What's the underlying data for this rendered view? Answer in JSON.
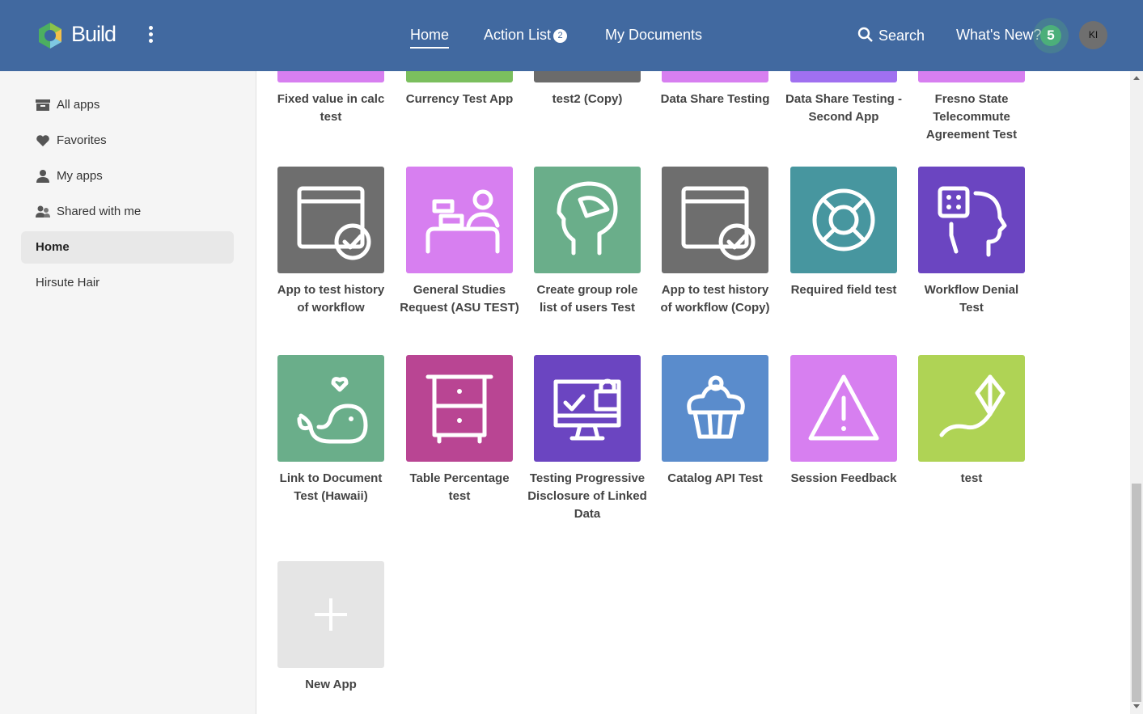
{
  "header": {
    "brand": "Build",
    "nav": [
      {
        "label": "Home",
        "active": true
      },
      {
        "label": "Action List",
        "badge": "2"
      },
      {
        "label": "My Documents"
      }
    ],
    "search": "Search",
    "whats_new": "What's New?",
    "whats_new_count": "5",
    "avatar": "KI",
    "bg": "#4169a0"
  },
  "sidebar": {
    "items": [
      {
        "label": "All apps",
        "icon": "archive-icon"
      },
      {
        "label": "Favorites",
        "icon": "heart-icon"
      },
      {
        "label": "My apps",
        "icon": "person-icon"
      },
      {
        "label": "Shared with me",
        "icon": "people-icon"
      },
      {
        "label": "Home",
        "active": true
      },
      {
        "label": "Hirsute Hair"
      }
    ]
  },
  "apps": [
    {
      "name": "Fixed value in calc test",
      "color": "#d77ff0",
      "icon": "none"
    },
    {
      "name": "Currency Test App",
      "color": "#7bbf5e",
      "icon": "none"
    },
    {
      "name": "test2 (Copy)",
      "color": "#6b6b6b",
      "icon": "none"
    },
    {
      "name": "Data Share Testing",
      "color": "#d77ff0",
      "icon": "none"
    },
    {
      "name": "Data Share Testing - Second App",
      "color": "#a070f0",
      "icon": "none"
    },
    {
      "name": "Fresno State Telecommute Agreement Test",
      "color": "#d77ff0",
      "icon": "none"
    },
    {
      "name": "App to test history of workflow",
      "color": "#6e6e6e",
      "icon": "calendar-check-icon"
    },
    {
      "name": "General Studies Request (ASU TEST)",
      "color": "#d77ff0",
      "icon": "cashier-icon"
    },
    {
      "name": "Create group role list of users Test",
      "color": "#6aae8a",
      "icon": "head-icon"
    },
    {
      "name": "App to test history of workflow (Copy)",
      "color": "#6e6e6e",
      "icon": "calendar-check-icon"
    },
    {
      "name": "Required field test",
      "color": "#47969f",
      "icon": "lifebuoy-icon"
    },
    {
      "name": "Workflow Denial Test",
      "color": "#6b45c1",
      "icon": "head-dice-icon"
    },
    {
      "name": "Link to Document Test (Hawaii)",
      "color": "#6aae8a",
      "icon": "whale-icon"
    },
    {
      "name": "Table Percentage test",
      "color": "#b94593",
      "icon": "cabinet-icon"
    },
    {
      "name": "Testing Progressive Disclosure of Linked Data",
      "color": "#6b45c1",
      "icon": "monitor-lock-icon"
    },
    {
      "name": "Catalog API Test",
      "color": "#5a8ccc",
      "icon": "cupcake-icon"
    },
    {
      "name": "Session Feedback",
      "color": "#d77ff0",
      "icon": "warning-icon"
    },
    {
      "name": "test",
      "color": "#afd355",
      "icon": "kite-icon"
    },
    {
      "name": "New App",
      "color": "#e5e5e5",
      "icon": "plus-icon"
    }
  ]
}
